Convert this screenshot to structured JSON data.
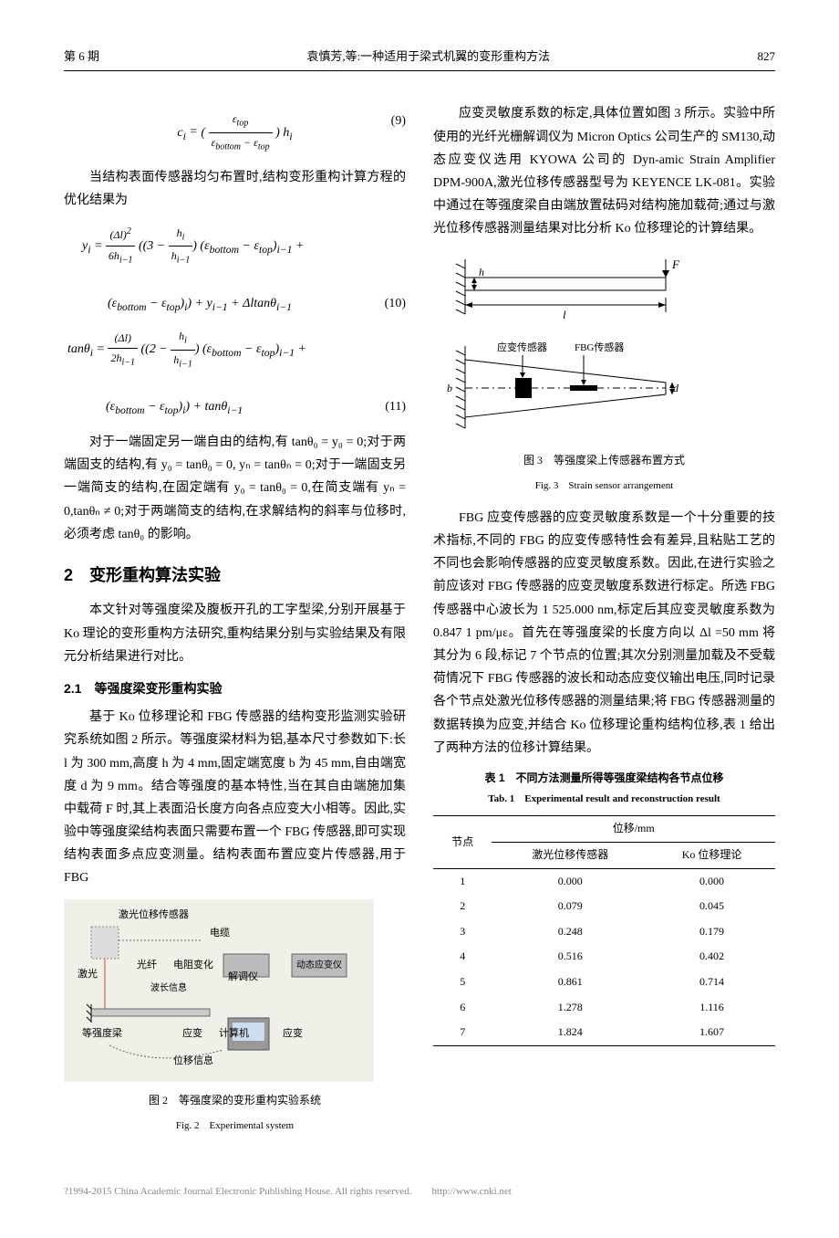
{
  "header": {
    "issue": "第 6 期",
    "title": "袁慎芳,等:一种适用于梁式机翼的变形重构方法",
    "page": "827"
  },
  "left_column": {
    "eq9": "c_i = (ε_top / (ε_bottom − ε_top)) h_i",
    "eq9_num": "(9)",
    "para1": "当结构表面传感器均匀布置时,结构变形重构计算方程的优化结果为",
    "eq10_num": "(10)",
    "eq11_num": "(11)",
    "para2": "对于一端固定另一端自由的结构,有 tanθ₀ = y₀ = 0;对于两端固支的结构,有 y₀ = tanθ₀ = 0, yₙ = tanθₙ = 0;对于一端固支另一端简支的结构,在固定端有 y₀ = tanθ₀ = 0,在简支端有 yₙ = 0,tanθₙ ≠ 0;对于两端简支的结构,在求解结构的斜率与位移时,必须考虑 tanθ₀ 的影响。",
    "h2": "2　变形重构算法实验",
    "para3": "本文针对等强度梁及腹板开孔的工字型梁,分别开展基于 Ko 理论的变形重构方法研究,重构结果分别与实验结果及有限元分析结果进行对比。",
    "h21": "2.1　等强度梁变形重构实验",
    "para4": "基于 Ko 位移理论和 FBG 传感器的结构变形监测实验研究系统如图 2 所示。等强度梁材料为铝,基本尺寸参数如下:长 l 为 300 mm,高度 h 为 4 mm,固定端宽度 b 为 45 mm,自由端宽度 d 为 9 mm。结合等强度的基本特性,当在其自由端施加集中载荷 F 时,其上表面沿长度方向各点应变大小相等。因此,实验中等强度梁结构表面只需要布置一个 FBG 传感器,即可实现结构表面多点应变测量。结构表面布置应变片传感器,用于 FBG",
    "fig2_labels": {
      "laser_disp": "激光位移传感器",
      "cable": "电缆",
      "laser": "激光",
      "fiber": "光纤",
      "resist": "电阻变化",
      "demod": "解调仪",
      "dynamic": "动态应变仪",
      "wavelength": "波长信息",
      "beam": "等强度梁",
      "strain": "应变",
      "computer": "计算机",
      "strain2": "应变",
      "disp": "位移信息"
    },
    "fig2_cap_cn": "图 2　等强度梁的变形重构实验系统",
    "fig2_cap_en": "Fig. 2　Experimental system"
  },
  "right_column": {
    "para1": "应变灵敏度系数的标定,具体位置如图 3 所示。实验中所使用的光纤光栅解调仪为 Micron Optics 公司生产的 SM130,动态应变仪选用 KYOWA 公司的 Dyn-amic Strain Amplifier DPM-900A,激光位移传感器型号为 KEYENCE LK-081。实验中通过在等强度梁自由端放置砝码对结构施加载荷;通过与激光位移传感器测量结果对比分析 Ko 位移理论的计算结果。",
    "fig3_labels": {
      "strain_sensor": "应变传感器",
      "fbg_sensor": "FBG传感器",
      "F": "F",
      "l": "l",
      "h": "h",
      "b": "b",
      "d": "d"
    },
    "fig3_cap_cn": "图 3　等强度梁上传感器布置方式",
    "fig3_cap_en": "Fig. 3　Strain sensor arrangement",
    "para2": "FBG 应变传感器的应变灵敏度系数是一个十分重要的技术指标,不同的 FBG 的应变传感特性会有差异,且粘贴工艺的不同也会影响传感器的应变灵敏度系数。因此,在进行实验之前应该对 FBG 传感器的应变灵敏度系数进行标定。所选 FBG 传感器中心波长为 1 525.000 nm,标定后其应变灵敏度系数为 0.847 1 pm/με。首先在等强度梁的长度方向以 Δl =50 mm 将其分为 6 段,标记 7 个节点的位置;其次分别测量加载及不受载荷情况下 FBG 传感器的波长和动态应变仪输出电压,同时记录各个节点处激光位移传感器的测量结果;将 FBG 传感器测量的数据转换为应变,并结合 Ko 位移理论重构结构位移,表 1 给出了两种方法的位移计算结果。",
    "tab1_cap_cn": "表 1　不同方法测量所得等强度梁结构各节点位移",
    "tab1_cap_en": "Tab. 1　Experimental result and reconstruction result",
    "table": {
      "col_node": "节点",
      "col_disp": "位移/mm",
      "col_laser": "激光位移传感器",
      "col_ko": "Ko 位移理论",
      "rows": [
        [
          "1",
          "0.000",
          "0.000"
        ],
        [
          "2",
          "0.079",
          "0.045"
        ],
        [
          "3",
          "0.248",
          "0.179"
        ],
        [
          "4",
          "0.516",
          "0.402"
        ],
        [
          "5",
          "0.861",
          "0.714"
        ],
        [
          "6",
          "1.278",
          "1.116"
        ],
        [
          "7",
          "1.824",
          "1.607"
        ]
      ]
    }
  },
  "footer": "?1994-2015 China Academic Journal Electronic Publishing House. All rights reserved.　　http://www.cnki.net"
}
